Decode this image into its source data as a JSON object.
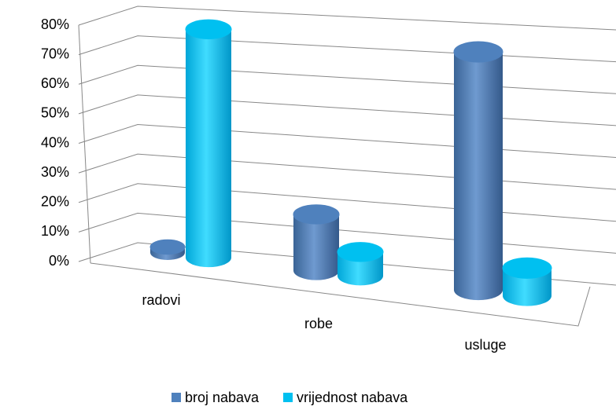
{
  "chart_data": {
    "type": "bar3d",
    "categories": [
      "radovi",
      "robe",
      "usluge"
    ],
    "series": [
      {
        "name": "broj nabava",
        "color": "#4f81bd",
        "values": [
          2,
          19,
          78
        ]
      },
      {
        "name": "vrijednost nabava",
        "color": "#00c0f0",
        "values": [
          79,
          8,
          9
        ]
      }
    ],
    "ylim": [
      0,
      80
    ],
    "yticks": [
      {
        "value": 0,
        "label": "0%"
      },
      {
        "value": 10,
        "label": "10%"
      },
      {
        "value": 20,
        "label": "20%"
      },
      {
        "value": 30,
        "label": "30%"
      },
      {
        "value": 40,
        "label": "40%"
      },
      {
        "value": 50,
        "label": "50%"
      },
      {
        "value": 60,
        "label": "60%"
      },
      {
        "value": 70,
        "label": "70%"
      },
      {
        "value": 80,
        "label": "80%"
      }
    ],
    "grid": true,
    "legend": "bottom"
  }
}
